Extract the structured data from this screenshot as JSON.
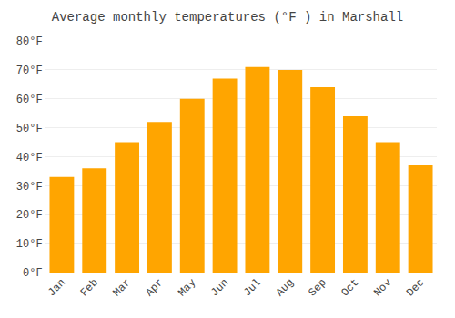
{
  "chart_data": {
    "type": "bar",
    "title": "Average monthly temperatures (°F ) in Marshall",
    "categories": [
      "Jan",
      "Feb",
      "Mar",
      "Apr",
      "May",
      "Jun",
      "Jul",
      "Aug",
      "Sep",
      "Oct",
      "Nov",
      "Dec"
    ],
    "values": [
      33,
      36,
      45,
      52,
      60,
      67,
      71,
      70,
      64,
      54,
      45,
      37
    ],
    "color": "#FFA500",
    "ylim": [
      0,
      80
    ],
    "yticks": [
      {
        "value": 0,
        "label": "0°F"
      },
      {
        "value": 10,
        "label": "10°F"
      },
      {
        "value": 20,
        "label": "20°F"
      },
      {
        "value": 30,
        "label": "30°F"
      },
      {
        "value": 40,
        "label": "40°F"
      },
      {
        "value": 50,
        "label": "50°F"
      },
      {
        "value": 60,
        "label": "60°F"
      },
      {
        "value": 70,
        "label": "70°F"
      },
      {
        "value": 80,
        "label": "80°F"
      }
    ],
    "grid": true
  }
}
